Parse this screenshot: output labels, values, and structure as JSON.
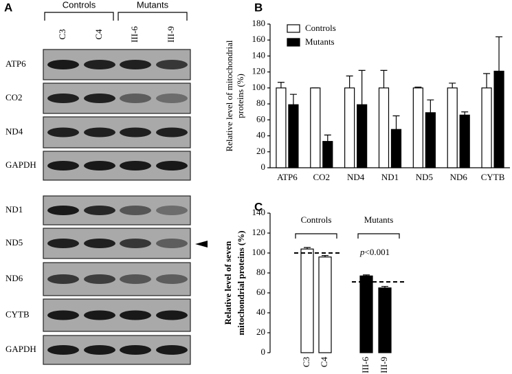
{
  "panel_labels": [
    "A",
    "B",
    "C"
  ],
  "blot": {
    "groups": [
      "Controls",
      "Mutants"
    ],
    "lanes": [
      "C3",
      "C4",
      "III-6",
      "III-9"
    ],
    "rows": [
      "ATP6",
      "CO2",
      "ND4",
      "GAPDH",
      "ND1",
      "ND5",
      "ND6",
      "CYTB",
      "GAPDH"
    ]
  },
  "chart_data": [
    {
      "type": "bar",
      "ylabel": [
        "Relative level of mitochondrial",
        "proteins (%)"
      ],
      "categories": [
        "ATP6",
        "CO2",
        "ND4",
        "ND1",
        "ND5",
        "ND6",
        "CYTB"
      ],
      "series": [
        {
          "name": "Controls",
          "color": "#ffffff",
          "values": [
            100,
            100,
            100,
            100,
            100,
            100,
            100
          ],
          "errors": [
            7,
            0,
            15,
            22,
            1,
            6,
            18
          ]
        },
        {
          "name": "Mutants",
          "color": "#000000",
          "values": [
            79,
            33,
            79,
            48,
            69,
            66,
            121
          ],
          "errors": [
            13,
            8,
            43,
            17,
            16,
            4,
            43
          ]
        }
      ],
      "ylim": [
        0,
        180
      ],
      "yticks": [
        0,
        20,
        40,
        60,
        80,
        100,
        120,
        140,
        160,
        180
      ],
      "legend": "upper-left"
    },
    {
      "type": "bar",
      "ylabel": [
        "Relative level of seven",
        "mitochondrial proteins (%)"
      ],
      "categories": [
        "C3",
        "C4",
        "III-6",
        "III-9"
      ],
      "values": [
        104,
        96,
        77,
        65
      ],
      "errors": [
        1.5,
        1.5,
        1,
        1.5
      ],
      "colors": [
        "#ffffff",
        "#ffffff",
        "#000000",
        "#000000"
      ],
      "groups": [
        "Controls",
        "Mutants"
      ],
      "group_means": [
        100,
        71
      ],
      "annotation": {
        "italic": "p",
        "text": "<0.001"
      },
      "ylim": [
        0,
        140
      ],
      "yticks": [
        0,
        20,
        40,
        60,
        80,
        100,
        120,
        140
      ]
    }
  ]
}
